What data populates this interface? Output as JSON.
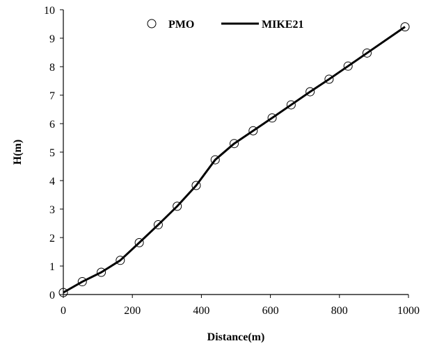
{
  "chart_data": {
    "type": "scatter",
    "title": "",
    "xlabel": "Distance(m)",
    "ylabel": "H(m)",
    "xlim": [
      0,
      1000
    ],
    "ylim": [
      0,
      10
    ],
    "xticks": [
      0,
      200,
      400,
      600,
      800,
      1000
    ],
    "yticks": [
      0,
      1,
      2,
      3,
      4,
      5,
      6,
      7,
      8,
      9,
      10
    ],
    "grid": false,
    "legend_position": "top-center",
    "colors": {
      "axis": "#000000",
      "line": "#000000",
      "marker_fill": "#ffffff"
    },
    "series": [
      {
        "name": "PMO",
        "style": "open-circle-markers",
        "x": [
          0,
          55,
          110,
          165,
          220,
          275,
          330,
          385,
          440,
          495,
          550,
          605,
          660,
          715,
          770,
          825,
          880,
          990
        ],
        "y": [
          0.07,
          0.45,
          0.78,
          1.2,
          1.82,
          2.45,
          3.1,
          3.83,
          4.73,
          5.3,
          5.75,
          6.2,
          6.66,
          7.12,
          7.56,
          8.02,
          8.48,
          9.4
        ]
      },
      {
        "name": "MIKE21",
        "style": "solid-line",
        "x": [
          0,
          55,
          110,
          165,
          220,
          275,
          330,
          385,
          440,
          495,
          550,
          605,
          660,
          715,
          770,
          825,
          880,
          990
        ],
        "y": [
          0.07,
          0.45,
          0.78,
          1.2,
          1.82,
          2.45,
          3.1,
          3.83,
          4.73,
          5.3,
          5.75,
          6.2,
          6.66,
          7.12,
          7.56,
          8.02,
          8.48,
          9.4
        ]
      }
    ]
  }
}
